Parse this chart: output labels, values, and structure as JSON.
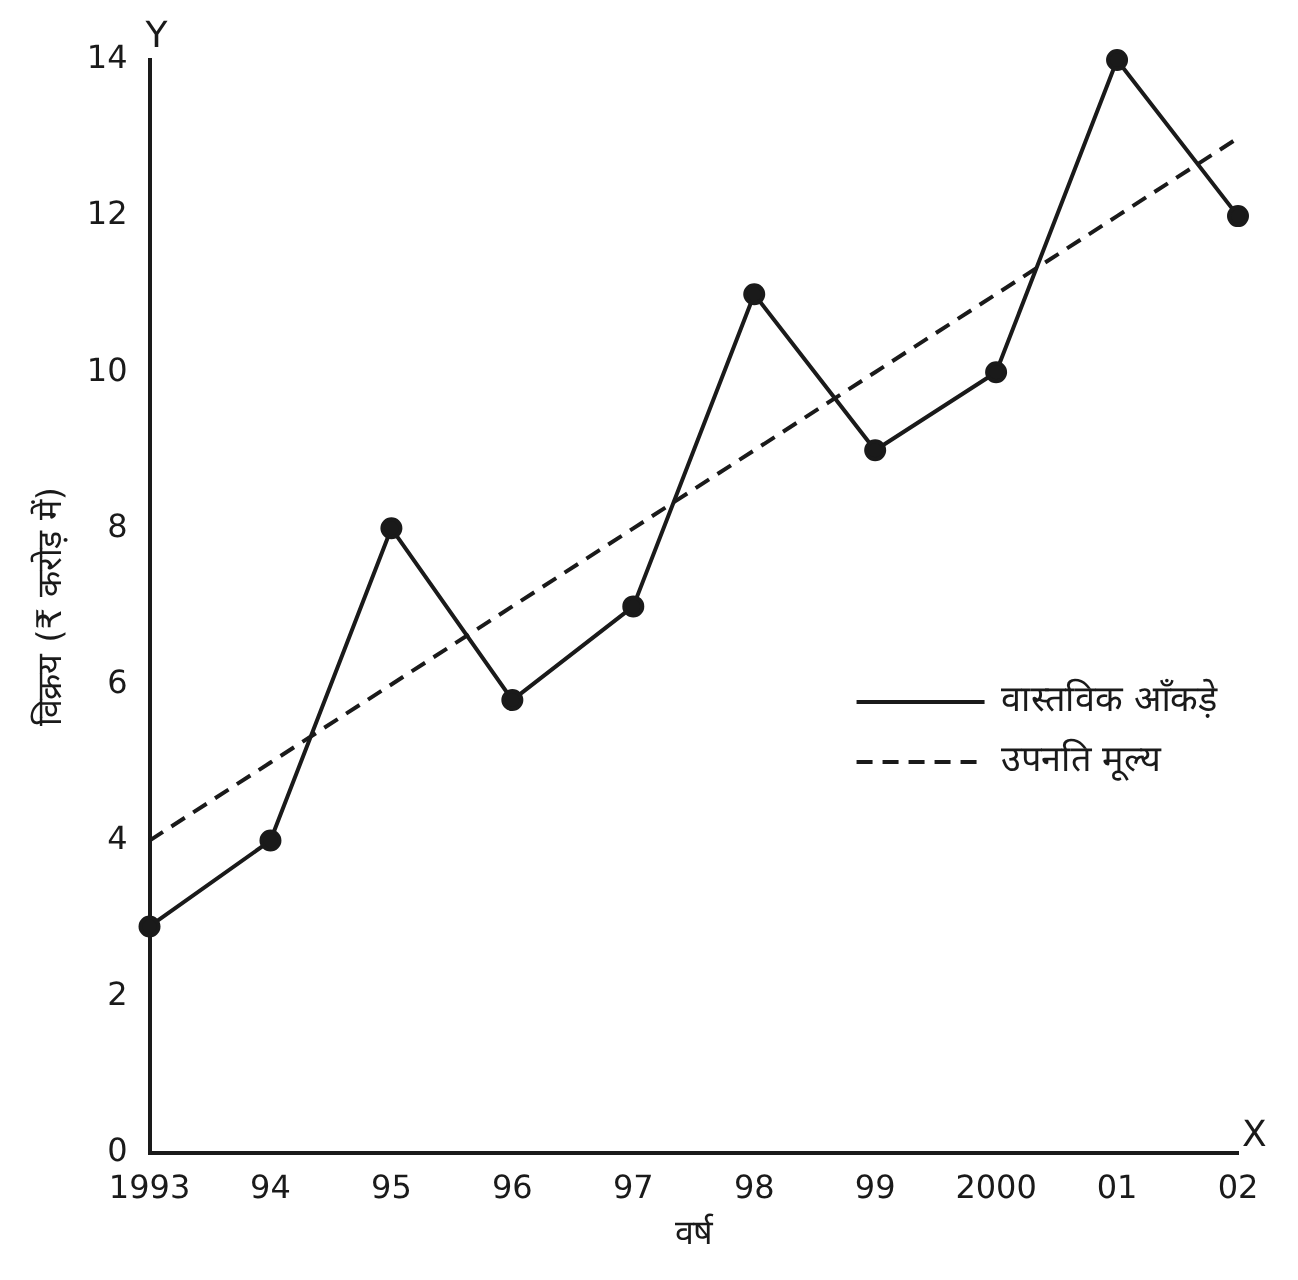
{
  "chart_data": {
    "type": "line",
    "xlabel": "वर्ष",
    "ylabel": "विक्रय (₹ करोड़ में)",
    "categories": [
      "1993",
      "94",
      "95",
      "96",
      "97",
      "98",
      "99",
      "2000",
      "01",
      "02"
    ],
    "series": [
      {
        "name": "वास्तविक आँकड़े",
        "color": "#1a1a1a",
        "values": [
          2.9,
          4,
          8,
          5.8,
          7,
          11,
          9,
          10,
          14,
          12
        ],
        "marker": "circle",
        "line_style": "solid"
      },
      {
        "name": "उपनति मूल्य",
        "color": "#1a1a1a",
        "values": [
          4,
          5,
          6,
          7,
          8,
          9,
          10,
          11,
          12,
          13
        ],
        "marker": "none",
        "line_style": "dashed"
      }
    ],
    "annotations": [
      "Y",
      "X"
    ],
    "ylim": [
      0,
      14
    ],
    "yticks": [
      0,
      2,
      4,
      6,
      8,
      10,
      12,
      14
    ],
    "grid": false,
    "legend": "right"
  }
}
